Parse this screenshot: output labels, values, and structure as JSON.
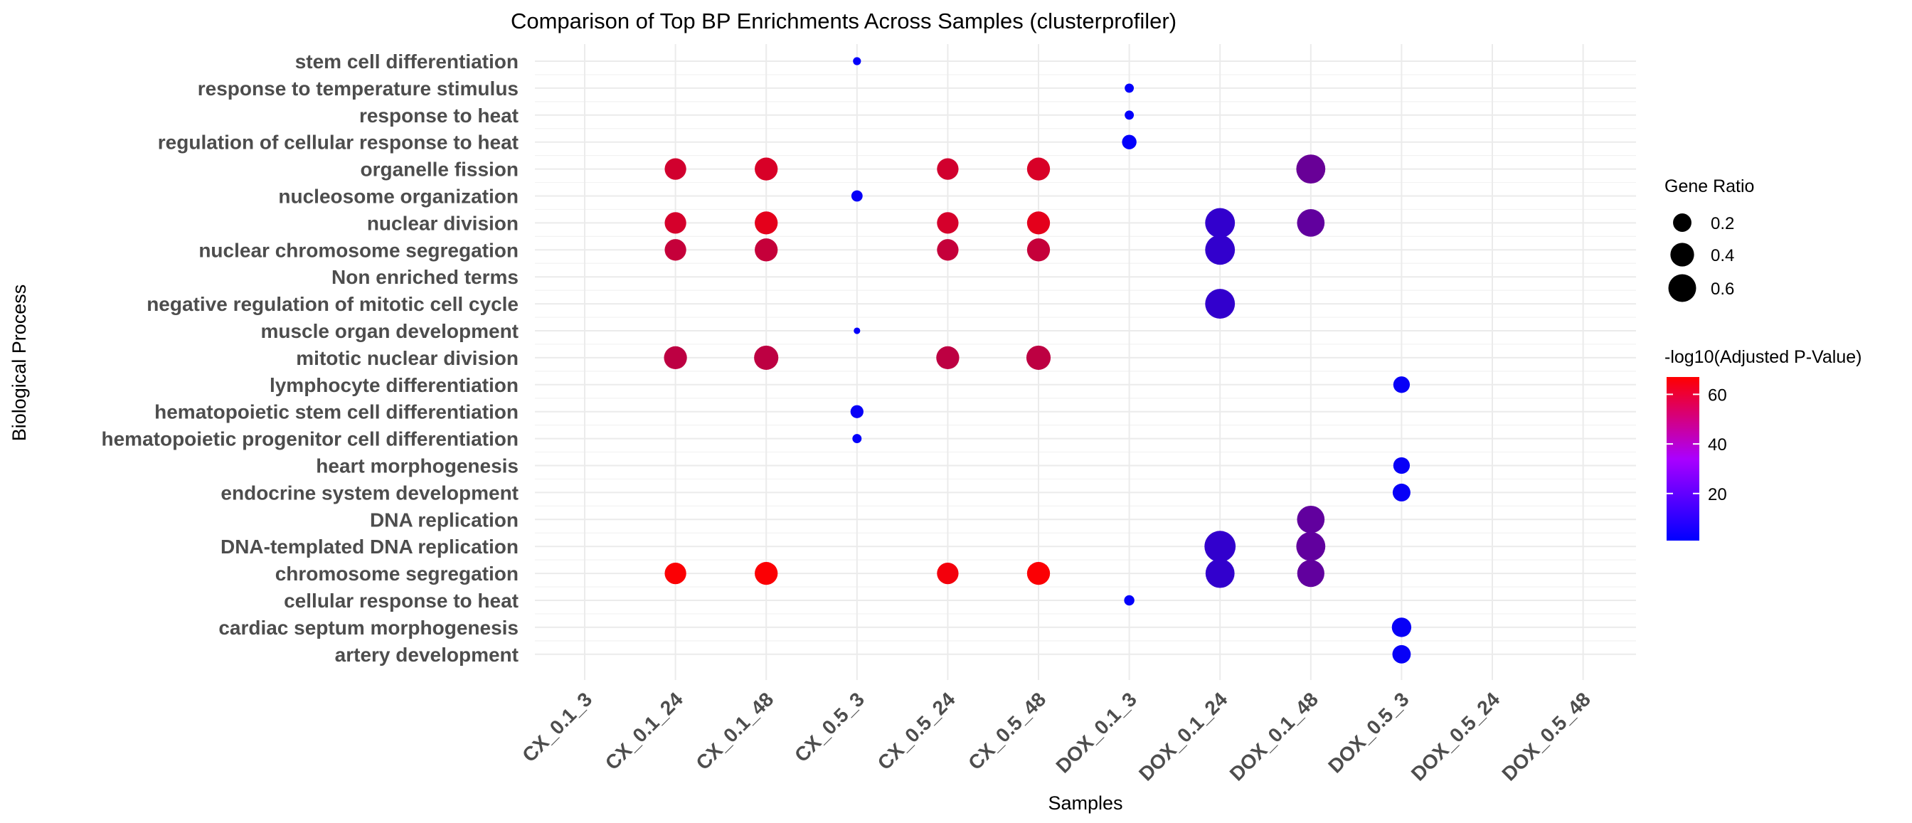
{
  "chart_data": {
    "type": "scatter",
    "title": "Comparison of Top BP Enrichments Across Samples (clusterprofiler)",
    "xlabel": "Samples",
    "ylabel": "Biological Process",
    "x_categories": [
      "CX_0.1_3",
      "CX_0.1_24",
      "CX_0.1_48",
      "CX_0.5_3",
      "CX_0.5_24",
      "CX_0.5_48",
      "DOX_0.1_3",
      "DOX_0.1_24",
      "DOX_0.1_48",
      "DOX_0.5_3",
      "DOX_0.5_24",
      "DOX_0.5_48"
    ],
    "y_categories": [
      "stem cell differentiation",
      "response to temperature stimulus",
      "response to heat",
      "regulation of cellular response to heat",
      "organelle fission",
      "nucleosome organization",
      "nuclear division",
      "nuclear chromosome segregation",
      "Non enriched terms",
      "negative regulation of mitotic cell cycle",
      "muscle organ development",
      "mitotic nuclear division",
      "lymphocyte differentiation",
      "hematopoietic stem cell differentiation",
      "hematopoietic progenitor cell differentiation",
      "heart morphogenesis",
      "endocrine system development",
      "DNA replication",
      "DNA-templated DNA replication",
      "chromosome segregation",
      "cellular response to heat",
      "cardiac septum morphogenesis",
      "artery development"
    ],
    "points": [
      {
        "x": "CX_0.5_3",
        "y": "stem cell differentiation",
        "gene_ratio": 0.03,
        "neglog10_padj": 2
      },
      {
        "x": "DOX_0.1_3",
        "y": "response to temperature stimulus",
        "gene_ratio": 0.04,
        "neglog10_padj": 2
      },
      {
        "x": "DOX_0.1_3",
        "y": "response to heat",
        "gene_ratio": 0.04,
        "neglog10_padj": 2
      },
      {
        "x": "DOX_0.1_3",
        "y": "regulation of cellular response to heat",
        "gene_ratio": 0.1,
        "neglog10_padj": 2
      },
      {
        "x": "CX_0.1_24",
        "y": "organelle fission",
        "gene_ratio": 0.22,
        "neglog10_padj": 55
      },
      {
        "x": "CX_0.1_48",
        "y": "organelle fission",
        "gene_ratio": 0.25,
        "neglog10_padj": 57
      },
      {
        "x": "CX_0.5_24",
        "y": "organelle fission",
        "gene_ratio": 0.22,
        "neglog10_padj": 55
      },
      {
        "x": "CX_0.5_48",
        "y": "organelle fission",
        "gene_ratio": 0.25,
        "neglog10_padj": 57
      },
      {
        "x": "DOX_0.1_48",
        "y": "organelle fission",
        "gene_ratio": 0.4,
        "neglog10_padj": 28
      },
      {
        "x": "CX_0.5_3",
        "y": "nucleosome organization",
        "gene_ratio": 0.06,
        "neglog10_padj": 3
      },
      {
        "x": "CX_0.1_24",
        "y": "nuclear division",
        "gene_ratio": 0.22,
        "neglog10_padj": 56
      },
      {
        "x": "CX_0.1_48",
        "y": "nuclear division",
        "gene_ratio": 0.25,
        "neglog10_padj": 60
      },
      {
        "x": "CX_0.5_24",
        "y": "nuclear division",
        "gene_ratio": 0.22,
        "neglog10_padj": 56
      },
      {
        "x": "CX_0.5_48",
        "y": "nuclear division",
        "gene_ratio": 0.25,
        "neglog10_padj": 60
      },
      {
        "x": "DOX_0.1_24",
        "y": "nuclear division",
        "gene_ratio": 0.42,
        "neglog10_padj": 14
      },
      {
        "x": "DOX_0.1_48",
        "y": "nuclear division",
        "gene_ratio": 0.36,
        "neglog10_padj": 26
      },
      {
        "x": "CX_0.1_24",
        "y": "nuclear chromosome segregation",
        "gene_ratio": 0.22,
        "neglog10_padj": 52
      },
      {
        "x": "CX_0.1_48",
        "y": "nuclear chromosome segregation",
        "gene_ratio": 0.25,
        "neglog10_padj": 52
      },
      {
        "x": "CX_0.5_24",
        "y": "nuclear chromosome segregation",
        "gene_ratio": 0.22,
        "neglog10_padj": 52
      },
      {
        "x": "CX_0.5_48",
        "y": "nuclear chromosome segregation",
        "gene_ratio": 0.25,
        "neglog10_padj": 52
      },
      {
        "x": "DOX_0.1_24",
        "y": "nuclear chromosome segregation",
        "gene_ratio": 0.42,
        "neglog10_padj": 14
      },
      {
        "x": "DOX_0.1_24",
        "y": "negative regulation of mitotic cell cycle",
        "gene_ratio": 0.42,
        "neglog10_padj": 14
      },
      {
        "x": "CX_0.5_3",
        "y": "muscle organ development",
        "gene_ratio": 0.02,
        "neglog10_padj": 2
      },
      {
        "x": "CX_0.1_24",
        "y": "mitotic nuclear division",
        "gene_ratio": 0.25,
        "neglog10_padj": 50
      },
      {
        "x": "CX_0.1_48",
        "y": "mitotic nuclear division",
        "gene_ratio": 0.28,
        "neglog10_padj": 50
      },
      {
        "x": "CX_0.5_24",
        "y": "mitotic nuclear division",
        "gene_ratio": 0.25,
        "neglog10_padj": 50
      },
      {
        "x": "CX_0.5_48",
        "y": "mitotic nuclear division",
        "gene_ratio": 0.28,
        "neglog10_padj": 50
      },
      {
        "x": "DOX_0.5_3",
        "y": "lymphocyte differentiation",
        "gene_ratio": 0.13,
        "neglog10_padj": 3
      },
      {
        "x": "CX_0.5_3",
        "y": "hematopoietic stem cell differentiation",
        "gene_ratio": 0.08,
        "neglog10_padj": 3
      },
      {
        "x": "CX_0.5_3",
        "y": "hematopoietic progenitor cell differentiation",
        "gene_ratio": 0.04,
        "neglog10_padj": 2
      },
      {
        "x": "DOX_0.5_3",
        "y": "heart morphogenesis",
        "gene_ratio": 0.13,
        "neglog10_padj": 3
      },
      {
        "x": "DOX_0.5_3",
        "y": "endocrine system development",
        "gene_ratio": 0.15,
        "neglog10_padj": 3
      },
      {
        "x": "DOX_0.1_48",
        "y": "DNA replication",
        "gene_ratio": 0.36,
        "neglog10_padj": 26
      },
      {
        "x": "DOX_0.1_24",
        "y": "DNA-templated DNA replication",
        "gene_ratio": 0.46,
        "neglog10_padj": 14
      },
      {
        "x": "DOX_0.1_48",
        "y": "DNA-templated DNA replication",
        "gene_ratio": 0.4,
        "neglog10_padj": 26
      },
      {
        "x": "CX_0.1_24",
        "y": "chromosome segregation",
        "gene_ratio": 0.22,
        "neglog10_padj": 66
      },
      {
        "x": "CX_0.1_48",
        "y": "chromosome segregation",
        "gene_ratio": 0.25,
        "neglog10_padj": 66
      },
      {
        "x": "CX_0.5_24",
        "y": "chromosome segregation",
        "gene_ratio": 0.22,
        "neglog10_padj": 64
      },
      {
        "x": "CX_0.5_48",
        "y": "chromosome segregation",
        "gene_ratio": 0.25,
        "neglog10_padj": 66
      },
      {
        "x": "DOX_0.1_24",
        "y": "chromosome segregation",
        "gene_ratio": 0.4,
        "neglog10_padj": 14
      },
      {
        "x": "DOX_0.1_48",
        "y": "chromosome segregation",
        "gene_ratio": 0.35,
        "neglog10_padj": 26
      },
      {
        "x": "DOX_0.1_3",
        "y": "cellular response to heat",
        "gene_ratio": 0.05,
        "neglog10_padj": 2
      },
      {
        "x": "DOX_0.5_3",
        "y": "cardiac septum morphogenesis",
        "gene_ratio": 0.18,
        "neglog10_padj": 3
      },
      {
        "x": "DOX_0.5_3",
        "y": "artery development",
        "gene_ratio": 0.16,
        "neglog10_padj": 3
      }
    ],
    "size_legend": {
      "title": "Gene Ratio",
      "breaks": [
        0.2,
        0.4,
        0.6
      ],
      "labels": [
        "0.2",
        "0.4",
        "0.6"
      ]
    },
    "color_legend": {
      "title": "-log10(Adjusted P-Value)",
      "limits": [
        1,
        67
      ],
      "breaks": [
        20,
        40,
        60
      ],
      "labels": [
        "20",
        "40",
        "60"
      ],
      "low_color": "#0000ff",
      "high_color": "#ff0000"
    },
    "grid": true,
    "legend_position": "right",
    "xtick_rotation": 45
  }
}
